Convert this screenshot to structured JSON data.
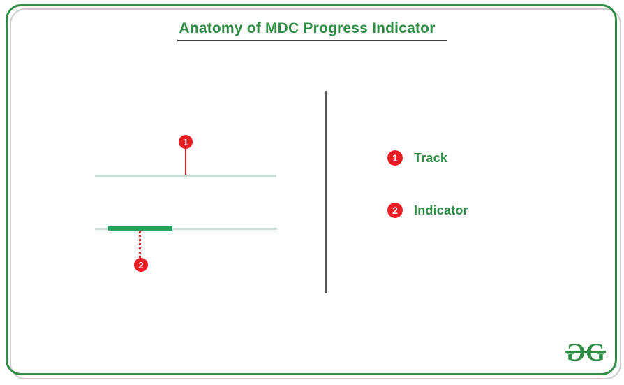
{
  "title": "Anatomy of MDC Progress Indicator",
  "diagram": {
    "markers": {
      "track": "1",
      "indicator": "2"
    }
  },
  "legend": {
    "items": [
      {
        "num": "1",
        "label": "Track"
      },
      {
        "num": "2",
        "label": "Indicator"
      }
    ]
  },
  "logo": {
    "left_g": "G",
    "right_g": "G"
  },
  "colors": {
    "brand_green": "#2f8d46",
    "indicator_green": "#27a05a",
    "track_light_green": "#cbded5",
    "marker_red": "#ed1d24",
    "divider_gray": "#555555",
    "title_underline": "#404040",
    "frame_shadow_gray": "#cccccc",
    "background": "#ffffff"
  }
}
